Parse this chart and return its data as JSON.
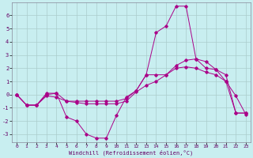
{
  "xlabel": "Windchill (Refroidissement éolien,°C)",
  "background_color": "#c8eef0",
  "grid_color": "#aacccc",
  "line_color": "#aa0088",
  "xlim": [
    -0.5,
    23.5
  ],
  "ylim": [
    -3.6,
    7.0
  ],
  "xticks": [
    0,
    1,
    2,
    3,
    4,
    5,
    6,
    7,
    8,
    9,
    10,
    11,
    12,
    13,
    14,
    15,
    16,
    17,
    18,
    19,
    20,
    21,
    22,
    23
  ],
  "yticks": [
    -3,
    -2,
    -1,
    0,
    1,
    2,
    3,
    4,
    5,
    6
  ],
  "series1": [
    0,
    -0.8,
    -0.8,
    0.1,
    0.1,
    -1.7,
    -2.0,
    -3.0,
    -3.3,
    -3.3,
    -1.6,
    -0.2,
    0.3,
    1.5,
    4.7,
    5.2,
    6.7,
    6.7,
    2.7,
    2.0,
    1.9,
    1.0,
    -0.1,
    -1.5
  ],
  "series2": [
    0,
    -0.8,
    -0.8,
    0.0,
    0.1,
    -0.5,
    -0.5,
    -0.5,
    -0.5,
    -0.5,
    -0.5,
    -0.3,
    0.3,
    1.5,
    1.5,
    1.5,
    2.2,
    2.6,
    2.7,
    2.5,
    1.9,
    1.5,
    -1.4,
    -1.4
  ],
  "series3": [
    0,
    -0.8,
    -0.8,
    -0.1,
    -0.2,
    -0.5,
    -0.6,
    -0.7,
    -0.7,
    -0.7,
    -0.7,
    -0.5,
    0.2,
    0.7,
    1.0,
    1.5,
    2.0,
    2.1,
    2.0,
    1.7,
    1.5,
    1.0,
    -1.4,
    -1.4
  ]
}
